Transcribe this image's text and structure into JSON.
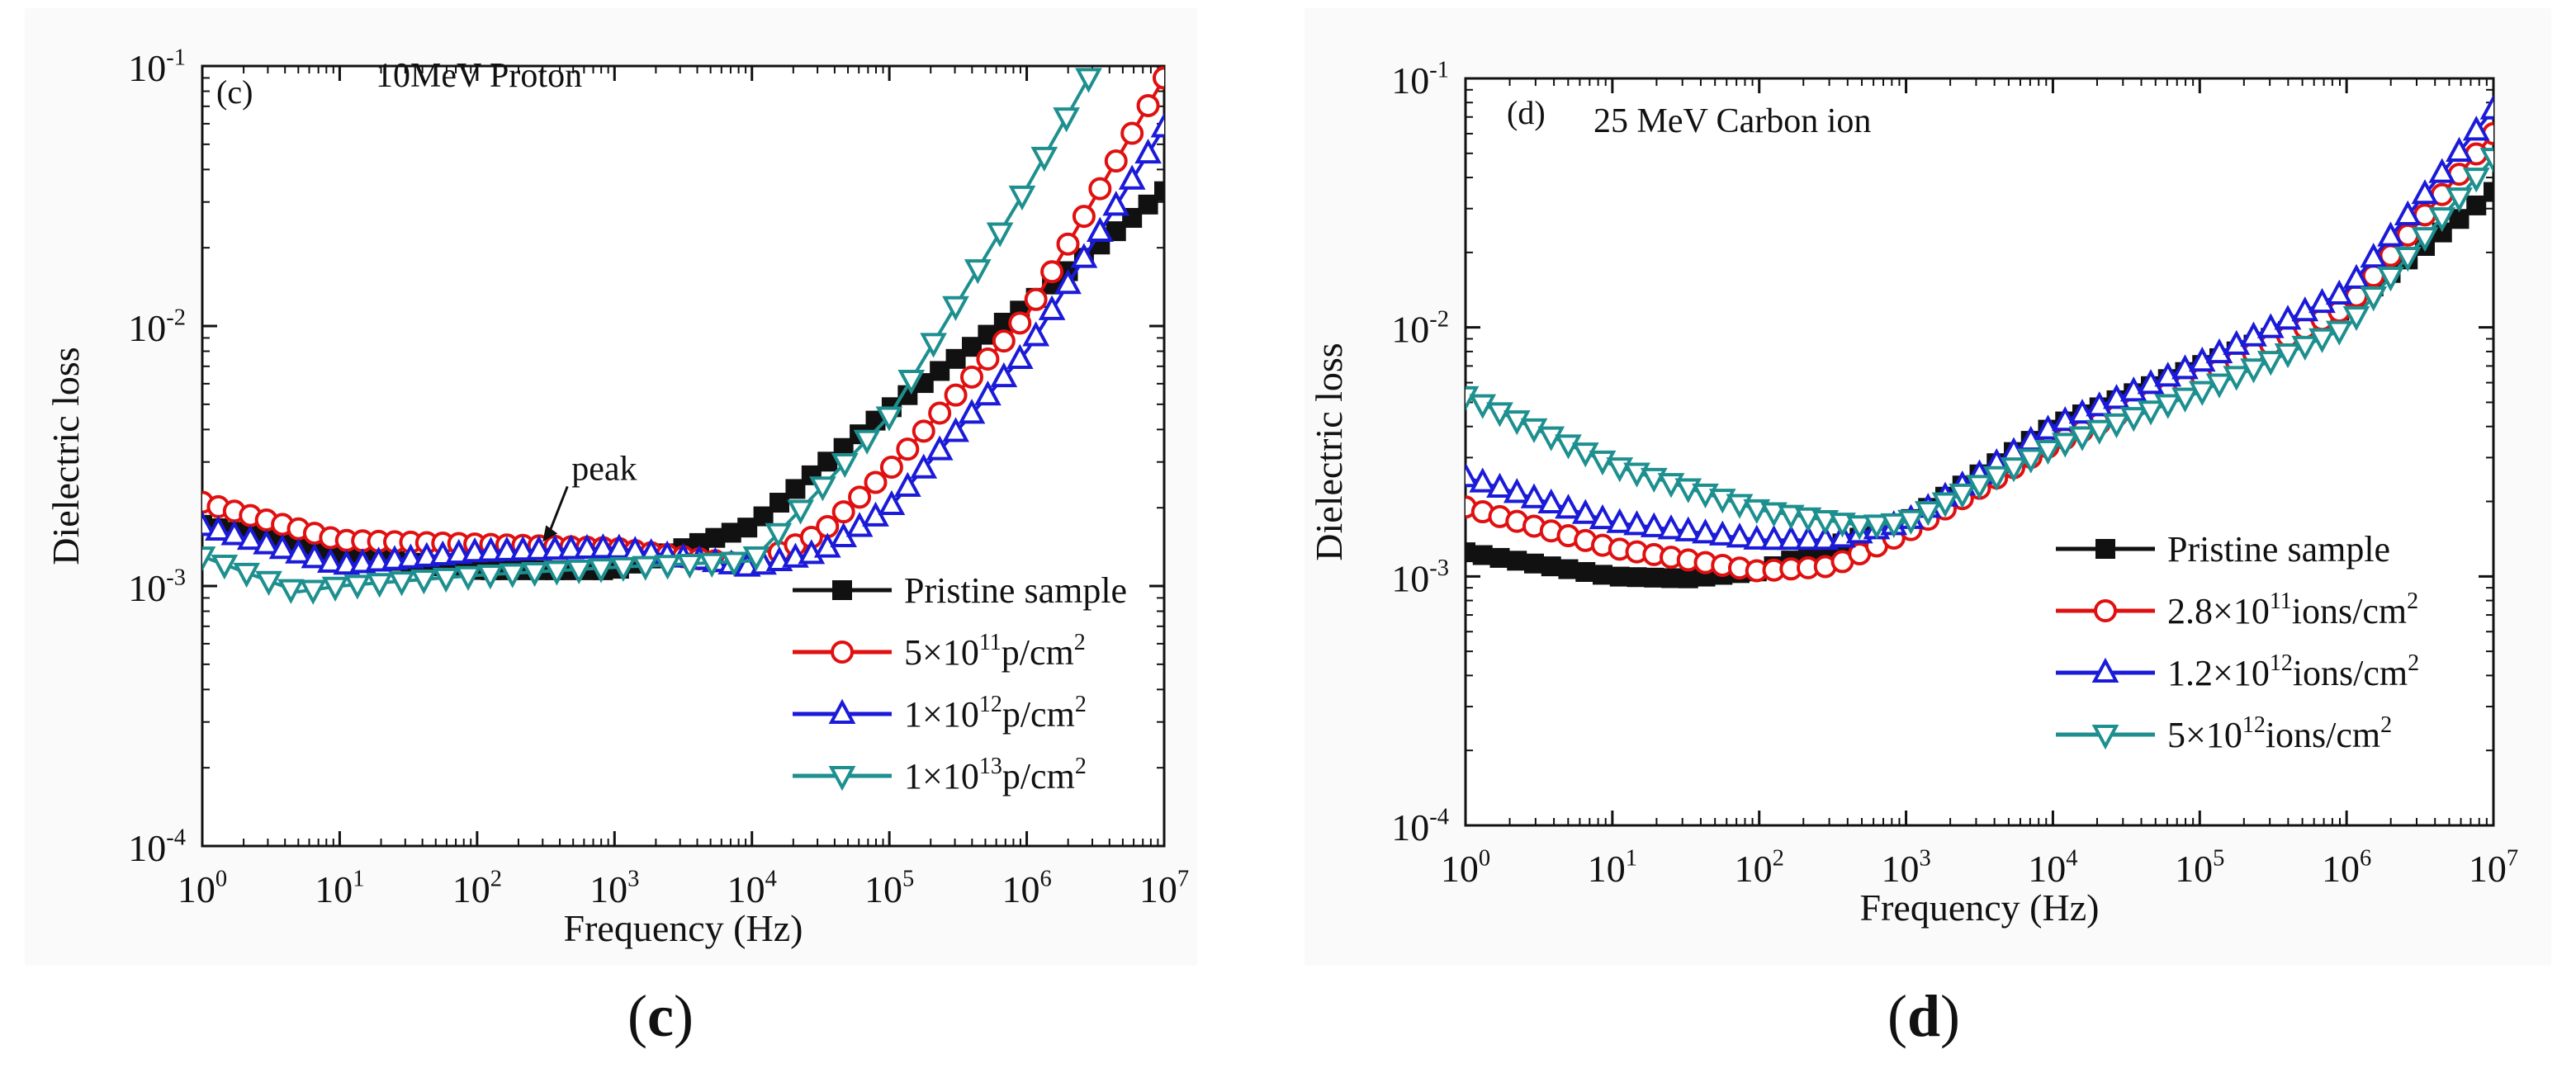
{
  "captions": [
    {
      "open": "(",
      "letter": "c",
      "close": ")"
    },
    {
      "open": "(",
      "letter": "d",
      "close": ")"
    }
  ],
  "colors": {
    "black": "#111111",
    "red": "#e01010",
    "blue": "#1a1ad8",
    "teal": "#1e8f8f"
  },
  "chart_data": [
    {
      "type": "line",
      "panel": "c",
      "panel_label": "(c)",
      "title": "10MeV Proton",
      "xlabel": "Frequency (Hz)",
      "ylabel": "Dielectric loss",
      "xscale": "log",
      "yscale": "log",
      "xlim": [
        1,
        10000000
      ],
      "ylim": [
        0.0001,
        0.1
      ],
      "xticks": [
        {
          "base": "10",
          "exp": "0"
        },
        {
          "base": "10",
          "exp": "1"
        },
        {
          "base": "10",
          "exp": "2"
        },
        {
          "base": "10",
          "exp": "3"
        },
        {
          "base": "10",
          "exp": "4"
        },
        {
          "base": "10",
          "exp": "5"
        },
        {
          "base": "10",
          "exp": "6"
        },
        {
          "base": "10",
          "exp": "7"
        }
      ],
      "yticks": [
        {
          "base": "10",
          "exp": "-4"
        },
        {
          "base": "10",
          "exp": "-3"
        },
        {
          "base": "10",
          "exp": "-2"
        },
        {
          "base": "10",
          "exp": "-1"
        }
      ],
      "annotation": {
        "text": "peak",
        "x": 300,
        "y": 0.00148
      },
      "legend_position": "bottom-right",
      "series": [
        {
          "name": "Pristine sample",
          "legend": [
            {
              "t": "Pristine sample"
            }
          ],
          "color": "#111111",
          "marker": "square-filled",
          "points": [
            [
              0,
              0.00172
            ],
            [
              1,
              0.00132
            ],
            [
              2,
              0.00115
            ],
            [
              3,
              0.00115
            ],
            [
              4,
              0.0017
            ],
            [
              5,
              0.0048
            ],
            [
              6,
              0.012
            ],
            [
              7,
              0.033
            ]
          ]
        },
        {
          "name": "5×10^11 p/cm^2",
          "legend": [
            {
              "t": "5×10"
            },
            {
              "t": "11",
              "sup": true
            },
            {
              "t": "p/cm"
            },
            {
              "t": "2",
              "sup": true
            }
          ],
          "color": "#e01010",
          "marker": "circle-open",
          "points": [
            [
              0,
              0.0021
            ],
            [
              1,
              0.0015
            ],
            [
              2,
              0.00145
            ],
            [
              3,
              0.0014
            ],
            [
              4,
              0.0012
            ],
            [
              4.5,
              0.0016
            ],
            [
              5,
              0.0028
            ],
            [
              6,
              0.011
            ],
            [
              7,
              0.09
            ]
          ]
        },
        {
          "name": "1×10^12 p/cm^2",
          "legend": [
            {
              "t": "1×10"
            },
            {
              "t": "12",
              "sup": true
            },
            {
              "t": "p/cm"
            },
            {
              "t": "2",
              "sup": true
            }
          ],
          "color": "#1a1ad8",
          "marker": "triangle-up-open",
          "points": [
            [
              0,
              0.0017
            ],
            [
              1,
              0.0012
            ],
            [
              2,
              0.00135
            ],
            [
              3,
              0.0014
            ],
            [
              4,
              0.00118
            ],
            [
              4.5,
              0.00135
            ],
            [
              5,
              0.002
            ],
            [
              6,
              0.008
            ],
            [
              7,
              0.058
            ]
          ]
        },
        {
          "name": "1×10^13 p/cm^2",
          "legend": [
            {
              "t": "1×10"
            },
            {
              "t": "13",
              "sup": true
            },
            {
              "t": "p/cm"
            },
            {
              "t": "2",
              "sup": true
            }
          ],
          "color": "#1e8f8f",
          "marker": "triangle-down-open",
          "points": [
            [
              0,
              0.0013
            ],
            [
              0.7,
              0.00095
            ],
            [
              1,
              0.001
            ],
            [
              2,
              0.0011
            ],
            [
              3,
              0.00118
            ],
            [
              4,
              0.00125
            ],
            [
              5,
              0.0045
            ],
            [
              6,
              0.034
            ],
            [
              6.45,
              0.09
            ]
          ]
        }
      ]
    },
    {
      "type": "line",
      "panel": "d",
      "panel_label": "(d)",
      "title": "25 MeV Carbon ion",
      "xlabel": "Frequency (Hz)",
      "ylabel": "Dielectric loss",
      "xscale": "log",
      "yscale": "log",
      "xlim": [
        1,
        10000000
      ],
      "ylim": [
        0.0001,
        0.1
      ],
      "xticks": [
        {
          "base": "10",
          "exp": "0"
        },
        {
          "base": "10",
          "exp": "1"
        },
        {
          "base": "10",
          "exp": "2"
        },
        {
          "base": "10",
          "exp": "3"
        },
        {
          "base": "10",
          "exp": "4"
        },
        {
          "base": "10",
          "exp": "5"
        },
        {
          "base": "10",
          "exp": "6"
        },
        {
          "base": "10",
          "exp": "7"
        }
      ],
      "yticks": [
        {
          "base": "10",
          "exp": "-4"
        },
        {
          "base": "10",
          "exp": "-3"
        },
        {
          "base": "10",
          "exp": "-2"
        },
        {
          "base": "10",
          "exp": "-1"
        }
      ],
      "legend_position": "middle-right",
      "series": [
        {
          "name": "Pristine sample",
          "legend": [
            {
              "t": "Pristine sample"
            }
          ],
          "color": "#111111",
          "marker": "square-filled",
          "points": [
            [
              0,
              0.00125
            ],
            [
              1,
              0.001
            ],
            [
              1.5,
              0.00098
            ],
            [
              2,
              0.00105
            ],
            [
              3,
              0.00165
            ],
            [
              4,
              0.004
            ],
            [
              5,
              0.007
            ],
            [
              6,
              0.012
            ],
            [
              7,
              0.035
            ]
          ]
        },
        {
          "name": "2.8×10^11 ions/cm^2",
          "legend": [
            {
              "t": "2.8×10"
            },
            {
              "t": "11",
              "sup": true
            },
            {
              "t": "ions/cm"
            },
            {
              "t": "2",
              "sup": true
            }
          ],
          "color": "#e01010",
          "marker": "circle-open",
          "points": [
            [
              0,
              0.0019
            ],
            [
              1,
              0.0013
            ],
            [
              2,
              0.00105
            ],
            [
              2.5,
              0.0011
            ],
            [
              3,
              0.0015
            ],
            [
              4,
              0.0034
            ],
            [
              5,
              0.0062
            ],
            [
              6,
              0.012
            ],
            [
              7,
              0.06
            ]
          ]
        },
        {
          "name": "1.2×10^12 ions/cm^2",
          "legend": [
            {
              "t": "1.2×10"
            },
            {
              "t": "12",
              "sup": true
            },
            {
              "t": "ions/cm"
            },
            {
              "t": "2",
              "sup": true
            }
          ],
          "color": "#1a1ad8",
          "marker": "triangle-up-open",
          "points": [
            [
              0,
              0.0025
            ],
            [
              1,
              0.00165
            ],
            [
              2,
              0.0014
            ],
            [
              2.5,
              0.0014
            ],
            [
              3,
              0.00165
            ],
            [
              4,
              0.004
            ],
            [
              5,
              0.0072
            ],
            [
              6,
              0.014
            ],
            [
              7,
              0.075
            ]
          ]
        },
        {
          "name": "5×10^12 ions/cm^2",
          "legend": [
            {
              "t": "5×10"
            },
            {
              "t": "12",
              "sup": true
            },
            {
              "t": "ions/cm"
            },
            {
              "t": "2",
              "sup": true
            }
          ],
          "color": "#1e8f8f",
          "marker": "triangle-down-open",
          "points": [
            [
              0,
              0.0053
            ],
            [
              1,
              0.0028
            ],
            [
              2,
              0.00185
            ],
            [
              2.7,
              0.0016
            ],
            [
              3,
              0.00165
            ],
            [
              4,
              0.0033
            ],
            [
              5,
              0.0055
            ],
            [
              6,
              0.01
            ],
            [
              7,
              0.048
            ]
          ]
        }
      ]
    }
  ]
}
